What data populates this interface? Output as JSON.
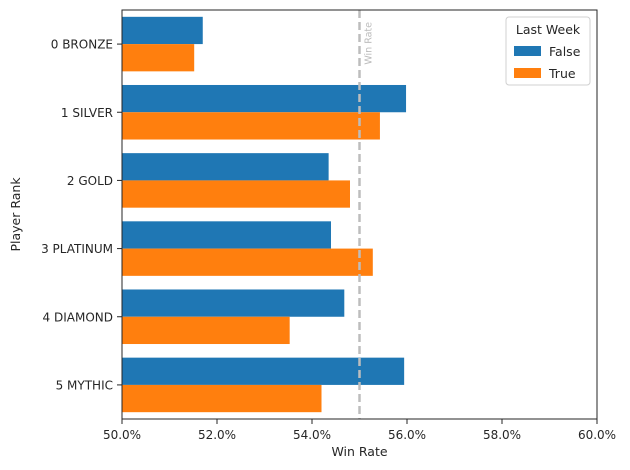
{
  "chart_data": {
    "type": "bar",
    "orientation": "horizontal",
    "categories": [
      "0 BRONZE",
      "1 SILVER",
      "2 GOLD",
      "3 PLATINUM",
      "4 DIAMOND",
      "5 MYTHIC"
    ],
    "series": [
      {
        "name": "False",
        "color": "#1f77b4",
        "values": [
          0.517,
          0.5598,
          0.5435,
          0.544,
          0.5468,
          0.5594
        ]
      },
      {
        "name": "True",
        "color": "#ff7f0e",
        "values": [
          0.5152,
          0.5543,
          0.548,
          0.5528,
          0.5353,
          0.542
        ]
      }
    ],
    "xlabel": "Win Rate",
    "ylabel": "Player Rank",
    "xlim": [
      0.5,
      0.6
    ],
    "xticks": [
      0.5,
      0.52,
      0.54,
      0.56,
      0.58,
      0.6
    ],
    "xtick_labels": [
      "50.0%",
      "52.0%",
      "54.0%",
      "56.0%",
      "58.0%",
      "60.0%"
    ],
    "reference_line": {
      "value": 0.55,
      "label": "Win Rate",
      "color": "#bdbdbd",
      "style": "dashed"
    },
    "legend": {
      "title": "Last Week",
      "placement": "top-right"
    },
    "grid": false
  }
}
